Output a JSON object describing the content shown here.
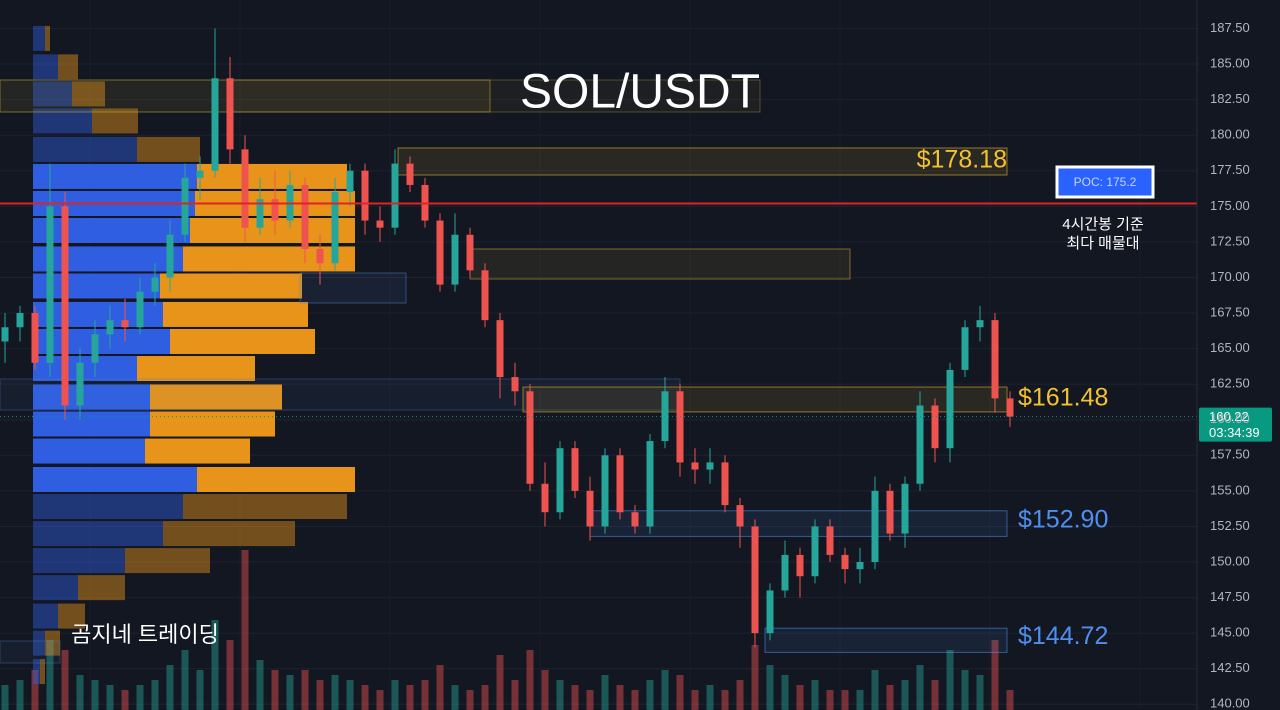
{
  "chart_data": {
    "type": "candlestick",
    "title": "SOL/USDT",
    "watermark": "곰지네 트레이딩",
    "ylim": [
      139.6,
      189.5
    ],
    "yticks": [
      {
        "value": 140,
        "label": "140.00"
      },
      {
        "value": 142.5,
        "label": "142.50"
      },
      {
        "value": 145,
        "label": "145.00"
      },
      {
        "value": 147.5,
        "label": "147.50"
      },
      {
        "value": 150,
        "label": "150.00"
      },
      {
        "value": 152.5,
        "label": "152.50"
      },
      {
        "value": 155,
        "label": "155.00"
      },
      {
        "value": 157.5,
        "label": "157.50"
      },
      {
        "value": 160,
        "label": "160.00"
      },
      {
        "value": 162.5,
        "label": "162.50"
      },
      {
        "value": 165,
        "label": "165.00"
      },
      {
        "value": 167.5,
        "label": "167.50"
      },
      {
        "value": 170,
        "label": "170.00"
      },
      {
        "value": 172.5,
        "label": "172.50"
      },
      {
        "value": 175,
        "label": "175.00"
      },
      {
        "value": 177.5,
        "label": "177.50"
      },
      {
        "value": 180,
        "label": "180.00"
      },
      {
        "value": 182.5,
        "label": "182.50"
      },
      {
        "value": 185,
        "label": "185.00"
      },
      {
        "value": 187.5,
        "label": "187.50"
      }
    ],
    "grid": true,
    "up_color": "#26a69a",
    "down_color": "#ef5350",
    "candles": [
      [
        165.5,
        167.5,
        164,
        166.5
      ],
      [
        166.5,
        168,
        165.5,
        167.5
      ],
      [
        167.5,
        168,
        163.5,
        164
      ],
      [
        164,
        178,
        163,
        175
      ],
      [
        175,
        176,
        160,
        161
      ],
      [
        161,
        165,
        160,
        164
      ],
      [
        164,
        167,
        163,
        166
      ],
      [
        166,
        168,
        165,
        167
      ],
      [
        167,
        168.5,
        165.5,
        166.5
      ],
      [
        166.5,
        170,
        166,
        169
      ],
      [
        169,
        171,
        168,
        170
      ],
      [
        170,
        174,
        169,
        173
      ],
      [
        173,
        178,
        172.5,
        177
      ],
      [
        177,
        178.5,
        175.5,
        177.5
      ],
      [
        177.5,
        187.5,
        177,
        184
      ],
      [
        184,
        185.5,
        178,
        179
      ],
      [
        179,
        180,
        172.5,
        173.5
      ],
      [
        173.5,
        177,
        173,
        175.5
      ],
      [
        175.5,
        177.5,
        173,
        174
      ],
      [
        174,
        177.5,
        173.5,
        176.5
      ],
      [
        176.5,
        177,
        171,
        172
      ],
      [
        172,
        173,
        169.5,
        171
      ],
      [
        171,
        177,
        170.5,
        176
      ],
      [
        176,
        178,
        175,
        177.5
      ],
      [
        177.5,
        178,
        173,
        174
      ],
      [
        174,
        175,
        172.5,
        173.5
      ],
      [
        173.5,
        179,
        173,
        178
      ],
      [
        178,
        178.5,
        176,
        176.5
      ],
      [
        176.5,
        177,
        173.5,
        174
      ],
      [
        174,
        174.5,
        169,
        169.5
      ],
      [
        169.5,
        174.5,
        169,
        173
      ],
      [
        173,
        173.5,
        170,
        170.5
      ],
      [
        170.5,
        171,
        166.5,
        167
      ],
      [
        167,
        167.5,
        161.5,
        163
      ],
      [
        163,
        164,
        161,
        162
      ],
      [
        162,
        162.5,
        155,
        155.5
      ],
      [
        155.5,
        157,
        152.5,
        153.5
      ],
      [
        153.5,
        158.5,
        153,
        158
      ],
      [
        158,
        158.5,
        154.5,
        155
      ],
      [
        155,
        156,
        151.5,
        152.5
      ],
      [
        152.5,
        158,
        152,
        157.5
      ],
      [
        157.5,
        158,
        153,
        153.5
      ],
      [
        153.5,
        154,
        152,
        152.5
      ],
      [
        152.5,
        159,
        152,
        158.5
      ],
      [
        158.5,
        163,
        158,
        162
      ],
      [
        162,
        162.5,
        156,
        157
      ],
      [
        157,
        158,
        155.5,
        156.5
      ],
      [
        156.5,
        158,
        155.5,
        157
      ],
      [
        157,
        157.5,
        153.5,
        154
      ],
      [
        154,
        154.5,
        151,
        152.5
      ],
      [
        152.5,
        153,
        144,
        145
      ],
      [
        145,
        148.5,
        144.5,
        148
      ],
      [
        148,
        151.5,
        147.5,
        150.5
      ],
      [
        150.5,
        151,
        147.5,
        149
      ],
      [
        149,
        153,
        148.5,
        152.5
      ],
      [
        152.5,
        153,
        150,
        150.5
      ],
      [
        150.5,
        151,
        148.5,
        149.5
      ],
      [
        149.5,
        151,
        148.5,
        150
      ],
      [
        150,
        156,
        149.5,
        155
      ],
      [
        155,
        155.5,
        151.5,
        152
      ],
      [
        152,
        156,
        151,
        155.5
      ],
      [
        155.5,
        162,
        155,
        161
      ],
      [
        161,
        161.5,
        157,
        158
      ],
      [
        158,
        164,
        157,
        163.5
      ],
      [
        163.5,
        167,
        163,
        166.5
      ],
      [
        166.5,
        168,
        165.5,
        167
      ],
      [
        167,
        167.5,
        160.5,
        161.5
      ],
      [
        161.5,
        162,
        159.5,
        160.22
      ]
    ],
    "volume": [
      25,
      30,
      40,
      70,
      60,
      35,
      30,
      25,
      20,
      25,
      30,
      45,
      60,
      40,
      90,
      70,
      160,
      50,
      40,
      35,
      40,
      30,
      35,
      30,
      25,
      20,
      30,
      25,
      30,
      45,
      25,
      20,
      25,
      55,
      30,
      60,
      40,
      30,
      25,
      20,
      35,
      25,
      20,
      30,
      40,
      35,
      20,
      25,
      20,
      30,
      65,
      45,
      35,
      25,
      30,
      20,
      20,
      20,
      40,
      25,
      30,
      45,
      30,
      60,
      40,
      35,
      70,
      20
    ],
    "volume_profile": {
      "price": [
        186.8,
        184.8,
        182.9,
        181.0,
        179.0,
        177.1,
        175.2,
        173.3,
        171.3,
        169.4,
        167.4,
        165.5,
        163.6,
        161.6,
        159.7,
        157.8,
        155.8,
        153.9,
        152.0,
        150.1,
        148.2,
        146.2,
        144.3,
        142.3
      ],
      "buy": [
        12,
        25,
        39,
        59,
        104,
        164,
        162,
        157,
        150,
        127,
        130,
        137,
        104,
        117,
        117,
        112,
        164,
        150,
        130,
        92,
        45,
        25,
        12,
        7
      ],
      "sell": [
        5,
        20,
        33,
        46,
        63,
        150,
        160,
        165,
        172,
        142,
        145,
        145,
        118,
        132,
        125,
        105,
        158,
        164,
        132,
        85,
        47,
        27,
        15,
        5
      ],
      "buy_color": "#2f5fe0",
      "sell_color": "#e8941a",
      "value_area": [
        155,
        178
      ]
    },
    "levels": [
      {
        "value": 178.18,
        "label": "$178.18",
        "zone": [
          177.2,
          179.1
        ],
        "color": "#f2c230"
      },
      {
        "value": 161.48,
        "label": "$161.48",
        "zone": [
          160.55,
          162.3
        ],
        "color": "#f2c230"
      },
      {
        "value": 152.9,
        "label": "$152.90",
        "zone": [
          151.8,
          153.6
        ],
        "color": "#4f8ff0"
      },
      {
        "value": 144.72,
        "label": "$144.72",
        "zone": [
          143.65,
          145.35
        ],
        "color": "#4f8ff0"
      }
    ],
    "poc": {
      "value": 175.2,
      "label": "POC: 175.2",
      "note": [
        "4시간봉 기준",
        "최다 매물대"
      ],
      "color": "#e02424"
    },
    "current": {
      "value": 160.22,
      "countdown": "03:34:39",
      "color": "#089981"
    }
  }
}
